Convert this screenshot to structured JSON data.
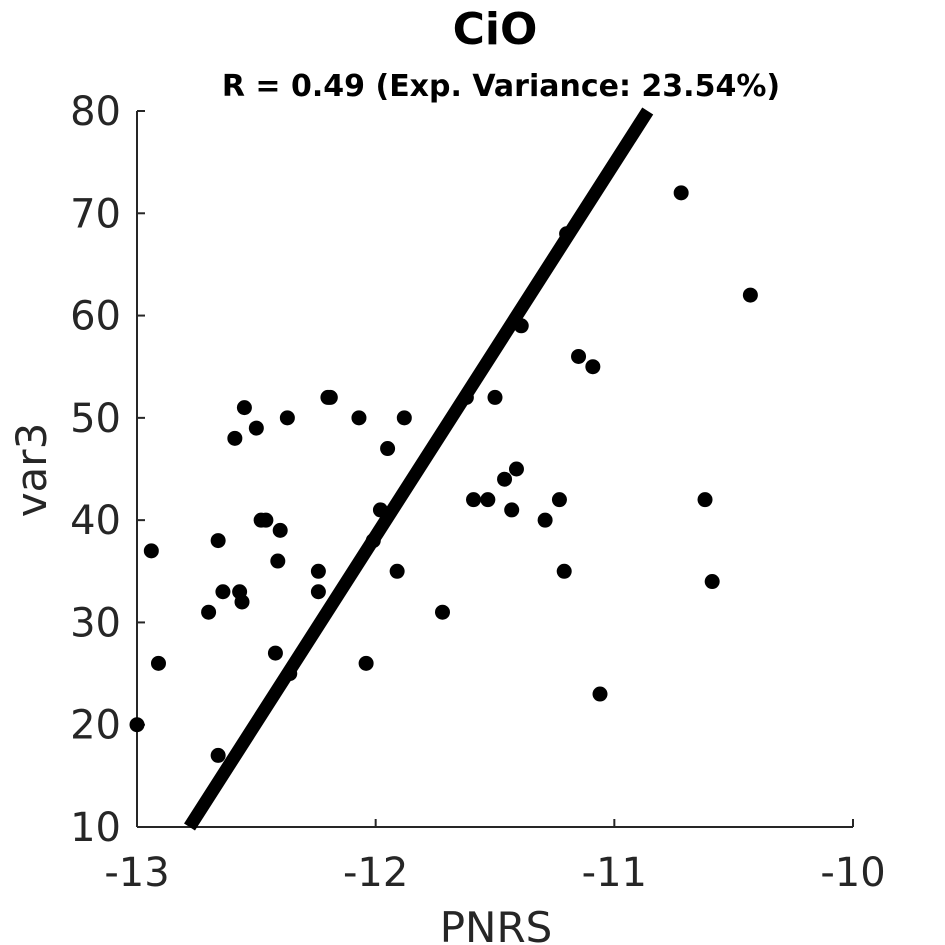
{
  "chart_data": {
    "type": "scatter",
    "title": "CiO",
    "subtitle": "R = 0.49 (Exp. Variance: 23.54%)",
    "xlabel": "PNRS",
    "ylabel": "var3",
    "xlim": [
      -13,
      -10
    ],
    "ylim": [
      10,
      80
    ],
    "xticks": [
      -13,
      -12,
      -11,
      -10
    ],
    "yticks": [
      10,
      20,
      30,
      40,
      50,
      60,
      70,
      80
    ],
    "grid": false,
    "legend": "none",
    "colors": {
      "points": "#000000",
      "line": "#000000",
      "axis": "#262626",
      "text": "#262626"
    },
    "trend_line": {
      "x": [
        -12.78,
        -10.86
      ],
      "y": [
        10,
        80
      ]
    },
    "points": [
      {
        "x": -13.0,
        "y": 20
      },
      {
        "x": -12.94,
        "y": 37
      },
      {
        "x": -12.91,
        "y": 26
      },
      {
        "x": -12.7,
        "y": 31
      },
      {
        "x": -12.66,
        "y": 38
      },
      {
        "x": -12.66,
        "y": 17
      },
      {
        "x": -12.64,
        "y": 33
      },
      {
        "x": -12.59,
        "y": 48
      },
      {
        "x": -12.57,
        "y": 33
      },
      {
        "x": -12.56,
        "y": 32
      },
      {
        "x": -12.55,
        "y": 51
      },
      {
        "x": -12.5,
        "y": 49
      },
      {
        "x": -12.48,
        "y": 40
      },
      {
        "x": -12.46,
        "y": 40
      },
      {
        "x": -12.42,
        "y": 27
      },
      {
        "x": -12.41,
        "y": 36
      },
      {
        "x": -12.4,
        "y": 39
      },
      {
        "x": -12.37,
        "y": 50
      },
      {
        "x": -12.36,
        "y": 25
      },
      {
        "x": -12.24,
        "y": 35
      },
      {
        "x": -12.24,
        "y": 33
      },
      {
        "x": -12.2,
        "y": 52
      },
      {
        "x": -12.19,
        "y": 52
      },
      {
        "x": -12.07,
        "y": 50
      },
      {
        "x": -12.04,
        "y": 26
      },
      {
        "x": -12.01,
        "y": 38
      },
      {
        "x": -11.98,
        "y": 41
      },
      {
        "x": -11.95,
        "y": 47
      },
      {
        "x": -11.91,
        "y": 35
      },
      {
        "x": -11.88,
        "y": 50
      },
      {
        "x": -11.72,
        "y": 31
      },
      {
        "x": -11.62,
        "y": 52
      },
      {
        "x": -11.59,
        "y": 42
      },
      {
        "x": -11.53,
        "y": 42
      },
      {
        "x": -11.5,
        "y": 52
      },
      {
        "x": -11.46,
        "y": 44
      },
      {
        "x": -11.43,
        "y": 41
      },
      {
        "x": -11.41,
        "y": 45
      },
      {
        "x": -11.39,
        "y": 59
      },
      {
        "x": -11.29,
        "y": 40
      },
      {
        "x": -11.23,
        "y": 42
      },
      {
        "x": -11.21,
        "y": 35
      },
      {
        "x": -11.2,
        "y": 68
      },
      {
        "x": -11.15,
        "y": 56
      },
      {
        "x": -11.09,
        "y": 55
      },
      {
        "x": -11.06,
        "y": 23
      },
      {
        "x": -10.72,
        "y": 72
      },
      {
        "x": -10.62,
        "y": 42
      },
      {
        "x": -10.59,
        "y": 34
      },
      {
        "x": -10.43,
        "y": 62
      }
    ]
  }
}
